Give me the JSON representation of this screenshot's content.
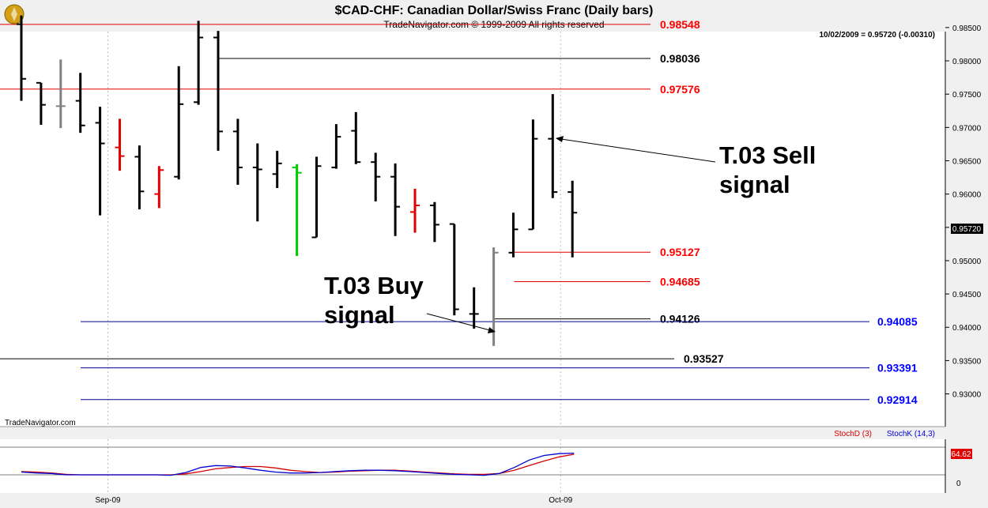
{
  "header": {
    "title": "$CAD-CHF:  Canadian Dollar/Swiss Franc  (Daily bars)",
    "subtitle": "TradeNavigator.com © 1999-2009 All rights reserved",
    "quote": "10/02/2009 = 0.95720 (-0.00310)"
  },
  "watermark": "TradeNavigator.com",
  "price_tag": "0.95720",
  "annotations": {
    "sell_line1": "T.03 Sell",
    "sell_line2": "signal",
    "buy_line1": "T.03 Buy",
    "buy_line2": "signal"
  },
  "stoch": {
    "legend_d": "StochD (3)",
    "legend_k": "StochK (14,3)",
    "value_label": "64.62",
    "tick_zero": "0",
    "d_color": "#d40000",
    "k_color": "#0000d0",
    "d_values": [
      27,
      26,
      24,
      21,
      20,
      20,
      20,
      20,
      20,
      20,
      20,
      22,
      27,
      33,
      36,
      38,
      38,
      35,
      30,
      27,
      25,
      26,
      28,
      29,
      30,
      30,
      28,
      26,
      24,
      22,
      21,
      21,
      23,
      30,
      40,
      50,
      59,
      64.62
    ],
    "k_values": [
      26,
      24,
      23,
      20,
      20,
      20,
      20,
      20,
      20,
      20,
      19,
      25,
      36,
      40,
      39,
      35,
      30,
      26,
      24,
      24,
      25,
      27,
      29,
      30,
      30,
      29,
      27,
      25,
      23,
      21,
      20,
      19,
      23,
      36,
      52,
      62,
      66,
      67
    ]
  },
  "colors": {
    "level_red": "#e00000",
    "level_black": "#000000",
    "level_blue": "#00008b",
    "bar_default": "#000000",
    "bar_down": "#e00000",
    "bar_up": "#00cc00",
    "bar_gray": "#808080",
    "label_red": "#ff0000",
    "label_blue": "#0000ff"
  },
  "chart_data": {
    "type": "ohlc",
    "title": "$CAD-CHF:  Canadian Dollar/Swiss Franc  (Daily bars)",
    "y_range": [
      0.9275,
      0.9885
    ],
    "y_ticks": [
      "0.98500",
      "0.98000",
      "0.97500",
      "0.97000",
      "0.96500",
      "0.96000",
      "0.95500",
      "0.95000",
      "0.94500",
      "0.94000",
      "0.93500",
      "0.93000"
    ],
    "x_ticks": [
      {
        "label": "Sep-09",
        "bar": 5
      },
      {
        "label": "Oct-09",
        "bar": 28
      }
    ],
    "bars": [
      {
        "o": 0.9855,
        "h": 0.9868,
        "l": 0.974,
        "c": 0.9773,
        "col": "bar_default"
      },
      {
        "o": 0.9767,
        "h": 0.9767,
        "l": 0.9704,
        "c": 0.9734,
        "col": "bar_default"
      },
      {
        "o": 0.9732,
        "h": 0.9802,
        "l": 0.9699,
        "c": 0.9732,
        "col": "bar_gray"
      },
      {
        "o": 0.974,
        "h": 0.9782,
        "l": 0.9692,
        "c": 0.9703,
        "col": "bar_default"
      },
      {
        "o": 0.9707,
        "h": 0.9731,
        "l": 0.9568,
        "c": 0.9676,
        "col": "bar_default"
      },
      {
        "o": 0.967,
        "h": 0.9713,
        "l": 0.9635,
        "c": 0.9657,
        "col": "bar_down"
      },
      {
        "o": 0.9656,
        "h": 0.9673,
        "l": 0.9577,
        "c": 0.9604,
        "col": "bar_default"
      },
      {
        "o": 0.96,
        "h": 0.9642,
        "l": 0.9579,
        "c": 0.9636,
        "col": "bar_down"
      },
      {
        "o": 0.9626,
        "h": 0.9792,
        "l": 0.9622,
        "c": 0.9735,
        "col": "bar_default"
      },
      {
        "o": 0.9738,
        "h": 0.986,
        "l": 0.9734,
        "c": 0.9835,
        "col": "bar_default"
      },
      {
        "o": 0.9835,
        "h": 0.9845,
        "l": 0.9665,
        "c": 0.9694,
        "col": "bar_default"
      },
      {
        "o": 0.9694,
        "h": 0.9713,
        "l": 0.9614,
        "c": 0.964,
        "col": "bar_default"
      },
      {
        "o": 0.964,
        "h": 0.9676,
        "l": 0.9559,
        "c": 0.9637,
        "col": "bar_default"
      },
      {
        "o": 0.963,
        "h": 0.9665,
        "l": 0.9609,
        "c": 0.9646,
        "col": "bar_default"
      },
      {
        "o": 0.964,
        "h": 0.9645,
        "l": 0.9507,
        "c": 0.9632,
        "col": "bar_up"
      },
      {
        "o": 0.9535,
        "h": 0.9656,
        "l": 0.9535,
        "c": 0.9642,
        "col": "bar_default"
      },
      {
        "o": 0.964,
        "h": 0.9705,
        "l": 0.9638,
        "c": 0.9686,
        "col": "bar_default"
      },
      {
        "o": 0.9695,
        "h": 0.9723,
        "l": 0.9645,
        "c": 0.9648,
        "col": "bar_default"
      },
      {
        "o": 0.9648,
        "h": 0.9662,
        "l": 0.9589,
        "c": 0.9626,
        "col": "bar_default"
      },
      {
        "o": 0.9626,
        "h": 0.9646,
        "l": 0.9537,
        "c": 0.9581,
        "col": "bar_default"
      },
      {
        "o": 0.9573,
        "h": 0.9608,
        "l": 0.9542,
        "c": 0.9583,
        "col": "bar_down"
      },
      {
        "o": 0.9583,
        "h": 0.9588,
        "l": 0.9528,
        "c": 0.9554,
        "col": "bar_default"
      },
      {
        "o": 0.9555,
        "h": 0.9555,
        "l": 0.9418,
        "c": 0.9427,
        "col": "bar_default"
      },
      {
        "o": 0.942,
        "h": 0.946,
        "l": 0.9398,
        "c": 0.942,
        "col": "bar_default"
      },
      {
        "o": 0.9393,
        "h": 0.952,
        "l": 0.9372,
        "c": 0.9512,
        "col": "bar_gray"
      },
      {
        "o": 0.9512,
        "h": 0.9572,
        "l": 0.9505,
        "c": 0.9547,
        "col": "bar_default"
      },
      {
        "o": 0.9547,
        "h": 0.9712,
        "l": 0.9547,
        "c": 0.9683,
        "col": "bar_default"
      },
      {
        "o": 0.9683,
        "h": 0.975,
        "l": 0.9594,
        "c": 0.9603,
        "col": "bar_default"
      },
      {
        "o": 0.9603,
        "h": 0.962,
        "l": 0.9505,
        "c": 0.9572,
        "col": "bar_default"
      }
    ],
    "levels": [
      {
        "value": 0.98548,
        "label": "0.98548",
        "color": "level_red",
        "label_color": "label_red",
        "from": "edge",
        "to": "label"
      },
      {
        "value": 0.98036,
        "label": "0.98036",
        "color": "level_black",
        "label_color": "level_black",
        "from": "bar10",
        "to": "label"
      },
      {
        "value": 0.97576,
        "label": "0.97576",
        "color": "level_red",
        "label_color": "label_red",
        "from": "edge",
        "to": "label"
      },
      {
        "value": 0.95127,
        "label": "0.95127",
        "color": "level_red",
        "label_color": "label_red",
        "from": "bar25",
        "to": "label"
      },
      {
        "value": 0.94685,
        "label": "0.94685",
        "color": "level_red",
        "label_color": "label_red",
        "from": "bar25",
        "to": "label"
      },
      {
        "value": 0.94126,
        "label": "0.94126",
        "color": "level_black",
        "label_color": "level_black",
        "from": "bar24",
        "to": "label"
      },
      {
        "value": 0.94085,
        "label": "0.94085",
        "color": "level_blue",
        "label_color": "label_blue",
        "from": "left102",
        "to": "axis"
      },
      {
        "value": 0.93527,
        "label": "0.93527",
        "color": "level_black",
        "label_color": "level_black",
        "from": "edge",
        "to": "label"
      },
      {
        "value": 0.93391,
        "label": "0.93391",
        "color": "level_blue",
        "label_color": "label_blue",
        "from": "left102",
        "to": "axis"
      },
      {
        "value": 0.92914,
        "label": "0.92914",
        "color": "level_blue",
        "label_color": "label_blue",
        "from": "left102",
        "to": "axis"
      }
    ]
  }
}
